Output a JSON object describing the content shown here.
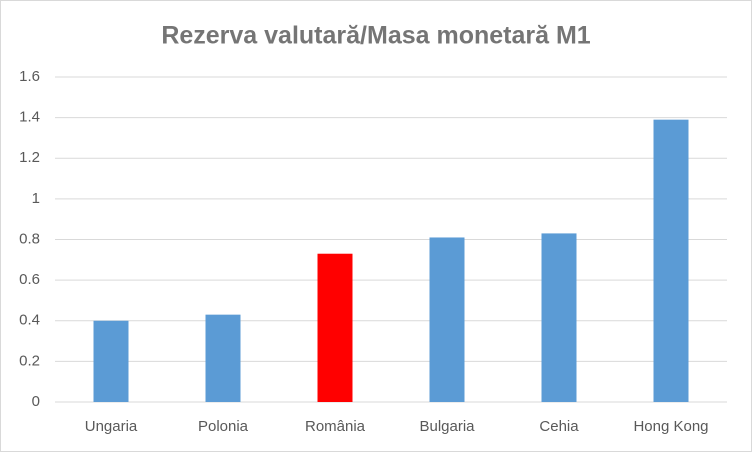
{
  "chart_data": {
    "type": "bar",
    "title": "Rezerva valutară/Masa monetară M1",
    "categories": [
      "Ungaria",
      "Polonia",
      "România",
      "Bulgaria",
      "Cehia",
      "Hong Kong"
    ],
    "values": [
      0.4,
      0.43,
      0.73,
      0.81,
      0.83,
      1.39
    ],
    "colors": [
      "#5b9bd5",
      "#5b9bd5",
      "#ff0000",
      "#5b9bd5",
      "#5b9bd5",
      "#5b9bd5"
    ],
    "ylim": [
      0,
      1.6
    ],
    "yticks": [
      0,
      0.2,
      0.4,
      0.6,
      0.8,
      1,
      1.2,
      1.4,
      1.6
    ],
    "grid": true
  }
}
